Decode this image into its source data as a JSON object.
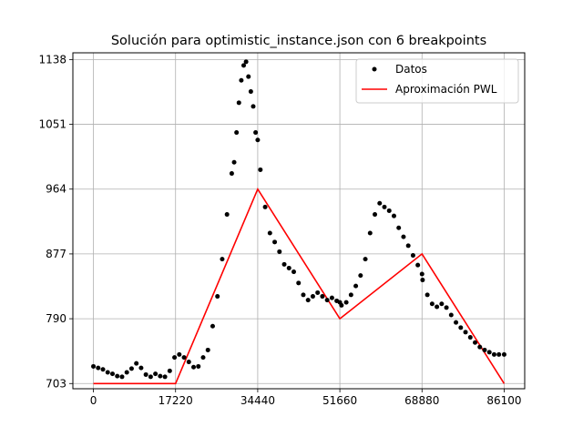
{
  "chart_data": {
    "type": "line",
    "title": "Solución para optimistic_instance.json con 6 breakpoints",
    "xlabel": "",
    "ylabel": "",
    "xlim": [
      -4305,
      90405
    ],
    "ylim": [
      696,
      1147
    ],
    "xticks": [
      0,
      17220,
      34440,
      51660,
      68880,
      86100
    ],
    "yticks": [
      703,
      790,
      877,
      964,
      1051,
      1138
    ],
    "grid": true,
    "legend_position": "top-right",
    "series": [
      {
        "name": "Datos",
        "style": "points",
        "color": "#000000",
        "x": [
          0,
          1000,
          2000,
          3000,
          4000,
          5000,
          6000,
          7000,
          8000,
          9000,
          10000,
          11000,
          12000,
          13000,
          14000,
          15000,
          16000,
          17000,
          18000,
          19000,
          20000,
          21000,
          22000,
          23000,
          24000,
          25000,
          26000,
          27000,
          28000,
          29000,
          29500,
          30000,
          30500,
          31000,
          31500,
          32000,
          32500,
          33000,
          33500,
          34000,
          34440,
          35000,
          36000,
          37000,
          38000,
          39000,
          40000,
          41000,
          42000,
          43000,
          44000,
          45000,
          46000,
          47000,
          48000,
          49000,
          50000,
          51000,
          51660,
          52000,
          53000,
          54000,
          55000,
          56000,
          57000,
          58000,
          59000,
          60000,
          61000,
          62000,
          63000,
          64000,
          65000,
          66000,
          67000,
          68000,
          68880,
          69000,
          70000,
          71000,
          72000,
          73000,
          74000,
          75000,
          76000,
          77000,
          78000,
          79000,
          80000,
          81000,
          82000,
          83000,
          84000,
          85000,
          86100
        ],
        "y": [
          726,
          724,
          722,
          718,
          716,
          713,
          712,
          718,
          723,
          730,
          724,
          715,
          712,
          716,
          713,
          712,
          720,
          738,
          742,
          738,
          732,
          725,
          726,
          738,
          748,
          780,
          820,
          870,
          930,
          985,
          1000,
          1040,
          1080,
          1110,
          1130,
          1135,
          1115,
          1095,
          1075,
          1040,
          1030,
          990,
          940,
          905,
          893,
          880,
          863,
          858,
          853,
          838,
          822,
          815,
          820,
          825,
          820,
          815,
          818,
          814,
          812,
          808,
          812,
          822,
          834,
          848,
          870,
          905,
          930,
          945,
          940,
          935,
          928,
          912,
          900,
          888,
          875,
          862,
          850,
          842,
          822,
          810,
          806,
          810,
          805,
          795,
          785,
          778,
          772,
          765,
          758,
          752,
          748,
          745,
          742,
          742,
          742
        ]
      },
      {
        "name": "Aproximación PWL",
        "style": "line",
        "color": "#ff0000",
        "x": [
          0,
          17220,
          34440,
          51660,
          68880,
          86100
        ],
        "y": [
          703,
          703,
          964,
          790,
          877,
          703
        ]
      }
    ]
  }
}
